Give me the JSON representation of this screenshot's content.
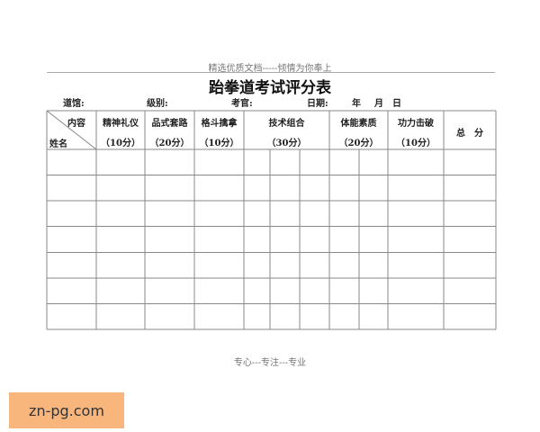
{
  "header_note": "精选优质文档-----倾情为你奉上",
  "title": "跆拳道考试评分表",
  "info": {
    "hall": "道馆:",
    "level": "级别:",
    "examiner": "考官:",
    "date": "日期:",
    "year": "年",
    "month": "月",
    "day": "日"
  },
  "corner": {
    "top": "内容",
    "bottom": "姓名"
  },
  "columns": [
    {
      "name": "精神礼仪",
      "points": "（10分）"
    },
    {
      "name": "品式套路",
      "points": "（20分）"
    },
    {
      "name": "格斗擒拿",
      "points": "（10分）"
    },
    {
      "name": "技术组合",
      "points": "（30分）"
    },
    {
      "name": "体能素质",
      "points": "（20分）"
    },
    {
      "name": "功力击破",
      "points": "（10分）"
    }
  ],
  "total": "总　分",
  "footer": "专心---专注---专业",
  "watermark": "zn-pg.com"
}
